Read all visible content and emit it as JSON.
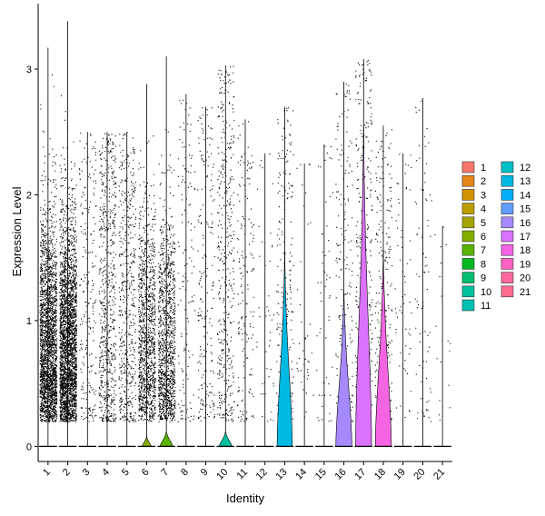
{
  "chart_data": {
    "type": "violin",
    "xlabel": "Identity",
    "ylabel": "Expression Level",
    "ylim": [
      -0.12,
      3.52
    ],
    "y_ticks": [
      0,
      1,
      2,
      3
    ],
    "grid": false,
    "legend_placement": "right",
    "legend_columns": 2,
    "categories": [
      "1",
      "2",
      "3",
      "4",
      "5",
      "6",
      "7",
      "8",
      "9",
      "10",
      "11",
      "12",
      "13",
      "14",
      "15",
      "16",
      "17",
      "18",
      "19",
      "20",
      "21"
    ],
    "colors": [
      "#F8766D",
      "#E7861B",
      "#D39200",
      "#BB9D00",
      "#A3A500",
      "#85AD00",
      "#5BB300",
      "#00B81F",
      "#00BE70",
      "#00C19C",
      "#00C1B2",
      "#00BFC4",
      "#00B9E3",
      "#00ADFA",
      "#619CFF",
      "#A58AFF",
      "#DB72FB",
      "#F564E3",
      "#FF61C3",
      "#FF68A1",
      "#FF6C91"
    ],
    "violins": [
      {
        "max": 3.17,
        "violin_top": 0,
        "violin_width": 0
      },
      {
        "max": 3.38,
        "violin_top": 0,
        "violin_width": 0
      },
      {
        "max": 2.5,
        "violin_top": 0,
        "violin_width": 0
      },
      {
        "max": 2.5,
        "violin_top": 0,
        "violin_width": 0
      },
      {
        "max": 2.5,
        "violin_top": 0,
        "violin_width": 0
      },
      {
        "max": 2.88,
        "violin_top": 0.08,
        "violin_width": 0.5
      },
      {
        "max": 3.1,
        "violin_top": 0.12,
        "violin_width": 0.7
      },
      {
        "max": 2.8,
        "violin_top": 0,
        "violin_width": 0
      },
      {
        "max": 2.7,
        "violin_top": 0,
        "violin_width": 0
      },
      {
        "max": 3.03,
        "violin_top": 0.12,
        "violin_width": 0.7
      },
      {
        "max": 2.6,
        "violin_top": 0,
        "violin_width": 0
      },
      {
        "max": 2.33,
        "violin_top": 0,
        "violin_width": 0
      },
      {
        "max": 2.7,
        "violin_top": 1.55,
        "violin_width": 0.85
      },
      {
        "max": 2.25,
        "violin_top": 0,
        "violin_width": 0
      },
      {
        "max": 2.4,
        "violin_top": 0,
        "violin_width": 0
      },
      {
        "max": 2.9,
        "violin_top": 1.25,
        "violin_width": 0.9
      },
      {
        "max": 3.08,
        "violin_top": 2.55,
        "violin_width": 0.9
      },
      {
        "max": 2.55,
        "violin_top": 1.55,
        "violin_width": 0.9
      },
      {
        "max": 2.33,
        "violin_top": 0,
        "violin_width": 0
      },
      {
        "max": 2.77,
        "violin_top": 0,
        "violin_width": 0
      },
      {
        "max": 1.75,
        "violin_top": 0,
        "violin_width": 0
      }
    ],
    "points_per_group": [
      2400,
      2700,
      220,
      650,
      500,
      1150,
      1150,
      140,
      210,
      420,
      170,
      45,
      230,
      40,
      55,
      190,
      330,
      230,
      60,
      80,
      18
    ]
  }
}
